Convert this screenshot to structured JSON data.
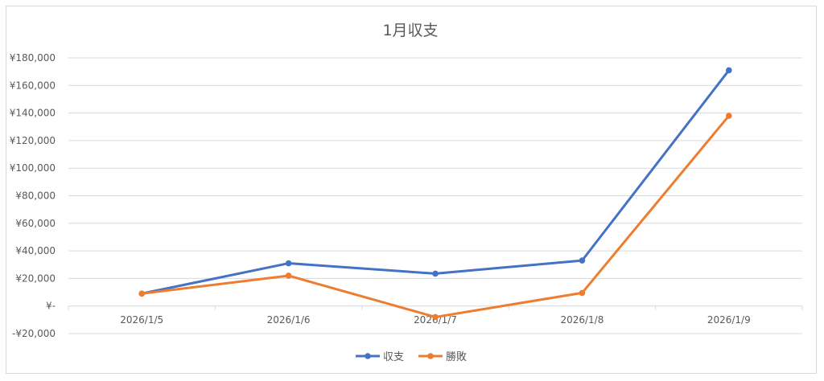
{
  "chart_data": {
    "type": "line",
    "title": "1月収支",
    "categories": [
      "2026/1/5",
      "2026/1/6",
      "2026/1/7",
      "2026/1/8",
      "2026/1/9"
    ],
    "y_ticks": [
      "¥180,000",
      "¥160,000",
      "¥140,000",
      "¥120,000",
      "¥100,000",
      "¥80,000",
      "¥60,000",
      "¥40,000",
      "¥20,000",
      "¥-",
      "-¥20,000"
    ],
    "ylim": [
      -20000,
      180000
    ],
    "grid": true,
    "legend_position": "bottom",
    "series": [
      {
        "name": "収支",
        "color": "#4472c4",
        "values": [
          9000,
          31000,
          23500,
          33000,
          171000
        ]
      },
      {
        "name": "勝敗",
        "color": "#ed7d31",
        "values": [
          9000,
          22000,
          -8000,
          9500,
          138000
        ]
      }
    ]
  }
}
